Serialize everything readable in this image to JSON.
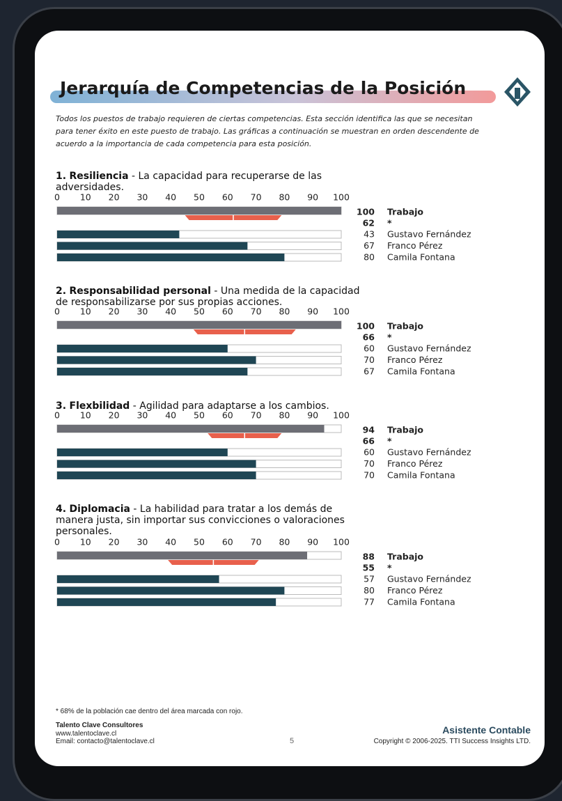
{
  "header": {
    "title": "Jerarquía de Competencias de la Posición",
    "intro": "Todos los puestos de trabajo requieren de ciertas competencias.  Esta sección identifica las que se necesitan para tener éxito en este puesto de trabajo.  Las gráficas a continuación se muestran en orden descendente de acuerdo a la importancia de cada competencia para esta posición."
  },
  "axis": {
    "xlim": [
      0,
      100
    ],
    "xticks": [
      0,
      10,
      20,
      30,
      40,
      50,
      60,
      70,
      80,
      90,
      100
    ]
  },
  "sections": [
    {
      "number": "1.",
      "name": "Resiliencia",
      "description": "- La capacidad para recuperarse de las adversidades.",
      "job": {
        "label": "Trabajo",
        "value": 100
      },
      "population": {
        "label": "*",
        "value": 62,
        "range": [
          45,
          79
        ]
      },
      "people": [
        {
          "name": "Gustavo Fernández",
          "value": 43
        },
        {
          "name": "Franco Pérez",
          "value": 67
        },
        {
          "name": "Camila Fontana",
          "value": 80
        }
      ]
    },
    {
      "number": "2.",
      "name": "Responsabilidad personal",
      "description": "- Una medida de la capacidad de responsabilizarse por sus propias acciones.",
      "job": {
        "label": "Trabajo",
        "value": 100
      },
      "population": {
        "label": "*",
        "value": 66,
        "range": [
          48,
          84
        ]
      },
      "people": [
        {
          "name": "Gustavo Fernández",
          "value": 60
        },
        {
          "name": "Franco Pérez",
          "value": 70
        },
        {
          "name": "Camila Fontana",
          "value": 67
        }
      ]
    },
    {
      "number": "3.",
      "name": "Flexbilidad",
      "description": "- Agilidad para adaptarse a los cambios.",
      "job": {
        "label": "Trabajo",
        "value": 94
      },
      "population": {
        "label": "*",
        "value": 66,
        "range": [
          53,
          79
        ]
      },
      "people": [
        {
          "name": "Gustavo Fernández",
          "value": 60
        },
        {
          "name": "Franco Pérez",
          "value": 70
        },
        {
          "name": "Camila Fontana",
          "value": 70
        }
      ]
    },
    {
      "number": "4.",
      "name": "Diplomacia",
      "description": "- La habilidad para tratar a los demás de manera justa, sin importar sus convicciones o valoraciones personales.",
      "job": {
        "label": "Trabajo",
        "value": 88
      },
      "population": {
        "label": "*",
        "value": 55,
        "range": [
          39,
          71
        ]
      },
      "people": [
        {
          "name": "Gustavo Fernández",
          "value": 57
        },
        {
          "name": "Franco Pérez",
          "value": 80
        },
        {
          "name": "Camila Fontana",
          "value": 77
        }
      ]
    }
  ],
  "footer": {
    "note": "* 68% de la población cae dentro del área marcada con rojo.",
    "company": "Talento Clave Consultores",
    "web": "www.talentoclave.cl",
    "email": "Email: contacto@talentoclave.cl",
    "page": "5",
    "position": "Asistente Contable",
    "copyright": "Copyright © 2006-2025. TTI Success Insights LTD."
  }
}
